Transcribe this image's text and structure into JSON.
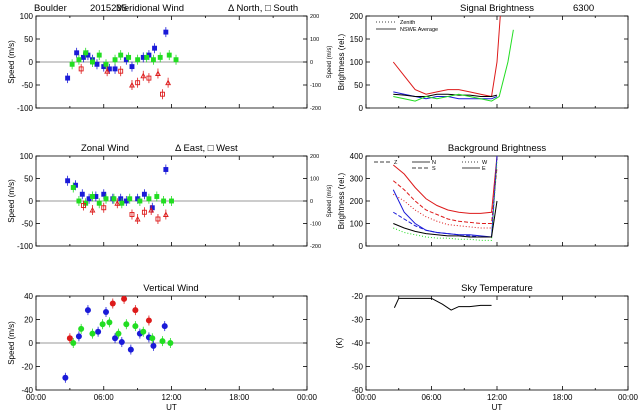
{
  "figure": {
    "site": "Boulder",
    "date_code": "2015235",
    "wavelength": "6300",
    "x_axis_label": "UT",
    "time_ticks": [
      "00:00",
      "06:00",
      "12:00",
      "18:00",
      "00:00"
    ]
  },
  "colors": {
    "red": "#dd1a1a",
    "green": "#22dd22",
    "blue": "#1a1ad8",
    "black": "#000000"
  },
  "chart_data": [
    {
      "id": "meridional_wind",
      "type": "scatter",
      "title": "Meridional Wind",
      "legend_text": "Δ North, □ South",
      "ylabel": "Speed (m/s)",
      "ylabel_right": "Speed (m/s)",
      "xlim": [
        0,
        24
      ],
      "ylim": [
        -100,
        100
      ],
      "yticks": [
        "100",
        "50",
        "0",
        "-50",
        "-100"
      ],
      "yticks_right": [
        "200",
        "100",
        "0",
        "-100",
        "-200"
      ],
      "series": [
        {
          "color": "blue",
          "x": [
            2.8,
            3.6,
            4.2,
            4.6,
            5.0,
            5.4,
            6.0,
            6.5,
            7.0,
            8.0,
            8.5,
            9.5,
            10.0,
            10.5,
            11.5
          ],
          "y": [
            -35,
            20,
            10,
            15,
            5,
            -5,
            -10,
            -15,
            -15,
            5,
            -10,
            10,
            15,
            30,
            65
          ]
        },
        {
          "color": "green",
          "x": [
            3.2,
            3.8,
            4.4,
            5.0,
            5.6,
            6.2,
            7.0,
            7.5,
            8.2,
            9.0,
            9.8,
            10.4,
            11.0,
            11.8,
            12.4
          ],
          "y": [
            -5,
            5,
            20,
            0,
            15,
            -5,
            5,
            15,
            10,
            5,
            10,
            5,
            10,
            15,
            5
          ]
        },
        {
          "color": "red",
          "x": [
            4.0,
            6.3,
            7.5,
            8.5,
            9.0,
            9.5,
            10.0,
            10.8,
            11.2,
            11.7
          ],
          "y": [
            -15,
            -20,
            -20,
            -50,
            -45,
            -30,
            -35,
            -25,
            -70,
            -45
          ]
        }
      ]
    },
    {
      "id": "zonal_wind",
      "type": "scatter",
      "title": "Zonal Wind",
      "legend_text": "Δ East, □ West",
      "ylabel": "Speed (m/s)",
      "ylabel_right": "Speed (m/s)",
      "xlim": [
        0,
        24
      ],
      "ylim": [
        -100,
        100
      ],
      "yticks": [
        "100",
        "50",
        "0",
        "-50",
        "-100"
      ],
      "yticks_right": [
        "200",
        "100",
        "0",
        "-100",
        "-200"
      ],
      "series": [
        {
          "color": "blue",
          "x": [
            2.8,
            3.5,
            4.1,
            4.7,
            5.3,
            6.0,
            6.8,
            7.5,
            8.0,
            9.0,
            9.6,
            10.3,
            11.5
          ],
          "y": [
            45,
            35,
            15,
            5,
            10,
            15,
            5,
            5,
            0,
            5,
            15,
            -15,
            70
          ]
        },
        {
          "color": "green",
          "x": [
            3.3,
            3.8,
            4.4,
            5.0,
            5.6,
            6.2,
            6.9,
            7.6,
            8.3,
            9.2,
            10.0,
            10.7,
            11.3,
            12.0
          ],
          "y": [
            30,
            0,
            -5,
            10,
            -5,
            5,
            5,
            -5,
            5,
            0,
            5,
            10,
            0,
            0
          ]
        },
        {
          "color": "red",
          "x": [
            4.2,
            5.0,
            6.0,
            7.2,
            8.5,
            9.0,
            9.6,
            10.2,
            10.8,
            11.5
          ],
          "y": [
            -10,
            -20,
            -15,
            -5,
            -30,
            -40,
            -25,
            -20,
            -40,
            -30
          ]
        }
      ]
    },
    {
      "id": "vertical_wind",
      "type": "scatter",
      "title": "Vertical Wind",
      "ylabel": "Speed (m/s)",
      "xlim": [
        0,
        24
      ],
      "ylim": [
        -50,
        50
      ],
      "yticks": [
        "40",
        "20",
        "0",
        "-20",
        "-40"
      ],
      "series": [
        {
          "color": "blue",
          "x": [
            2.6,
            3.8,
            4.6,
            5.5,
            6.2,
            7.0,
            7.6,
            8.4,
            9.2,
            10.0,
            10.4,
            11.4
          ],
          "y": [
            -37,
            7,
            35,
            12,
            33,
            5,
            1,
            -7,
            10,
            6,
            -3,
            18
          ]
        },
        {
          "color": "green",
          "x": [
            3.3,
            4.0,
            5.0,
            5.9,
            6.5,
            7.3,
            8.0,
            8.8,
            9.5,
            10.3,
            11.2,
            11.9
          ],
          "y": [
            0,
            15,
            10,
            20,
            22,
            10,
            20,
            18,
            12,
            5,
            2,
            0
          ]
        },
        {
          "color": "red",
          "x": [
            3.0,
            6.8,
            7.8,
            8.8,
            10.0
          ],
          "y": [
            5,
            42,
            47,
            35,
            24
          ]
        }
      ]
    },
    {
      "id": "signal_brightness",
      "type": "line",
      "title": "Signal Brightness",
      "ylabel": "Brightness (rel.)",
      "xlim": [
        0,
        24
      ],
      "ylim": [
        0,
        200
      ],
      "yticks": [
        "200",
        "150",
        "100",
        "50",
        "0"
      ],
      "legend": [
        "Zenith",
        "NSWE Average"
      ],
      "series": [
        {
          "color": "red",
          "x": [
            2.5,
            3.5,
            4.5,
            5.5,
            6.5,
            7.5,
            8.5,
            9.5,
            10.5,
            11.5,
            12.0,
            12.3
          ],
          "y": [
            100,
            70,
            40,
            30,
            35,
            40,
            40,
            35,
            30,
            25,
            100,
            200
          ]
        },
        {
          "color": "blue",
          "x": [
            2.5,
            3.5,
            4.5,
            5.5,
            6.5,
            7.5,
            8.5,
            9.5,
            10.5,
            11.5,
            12.0
          ],
          "y": [
            35,
            30,
            25,
            20,
            25,
            25,
            20,
            20,
            20,
            20,
            25
          ]
        },
        {
          "color": "black",
          "x": [
            2.5,
            3.5,
            4.5,
            5.5,
            6.5,
            7.5,
            8.5,
            9.5,
            10.5,
            11.5,
            12.0
          ],
          "y": [
            30,
            28,
            25,
            25,
            30,
            30,
            28,
            28,
            25,
            25,
            28
          ]
        },
        {
          "color": "green",
          "x": [
            2.5,
            3.5,
            4.5,
            5.5,
            6.5,
            7.5,
            8.5,
            9.5,
            10.5,
            11.5,
            12.2,
            13.0,
            13.5
          ],
          "y": [
            25,
            20,
            15,
            25,
            20,
            25,
            30,
            25,
            20,
            15,
            25,
            100,
            170
          ]
        }
      ]
    },
    {
      "id": "background_brightness",
      "type": "line",
      "title": "Background Brightness",
      "ylabel": "Brightness (rel.)",
      "xlim": [
        0,
        24
      ],
      "ylim": [
        0,
        400
      ],
      "yticks": [
        "400",
        "300",
        "200",
        "100",
        "0"
      ],
      "legend": [
        "Z",
        "N",
        "S",
        "W",
        "E"
      ],
      "series": [
        {
          "color": "red",
          "x": [
            2.5,
            3.5,
            4.5,
            5.5,
            6.5,
            7.5,
            8.5,
            9.5,
            10.5,
            11.5,
            12.0
          ],
          "y": [
            360,
            320,
            260,
            210,
            180,
            160,
            150,
            145,
            145,
            150,
            400
          ]
        },
        {
          "color": "red",
          "x": [
            2.5,
            3.5,
            4.5,
            5.5,
            6.5,
            7.5,
            8.5,
            9.5,
            10.5,
            11.5,
            12.0
          ],
          "y": [
            290,
            250,
            200,
            160,
            140,
            120,
            110,
            105,
            100,
            100,
            350
          ]
        },
        {
          "color": "red",
          "x": [
            2.5,
            3.5,
            4.5,
            5.5,
            6.5,
            7.5,
            8.5,
            9.5,
            10.5,
            11.5
          ],
          "y": [
            230,
            200,
            160,
            130,
            110,
            95,
            90,
            85,
            80,
            80
          ]
        },
        {
          "color": "blue",
          "x": [
            2.5,
            3.5,
            4.5,
            5.5,
            6.5,
            7.5,
            8.5,
            9.5,
            10.5,
            11.5,
            12.0
          ],
          "y": [
            250,
            150,
            100,
            70,
            60,
            55,
            50,
            50,
            45,
            40,
            400
          ]
        },
        {
          "color": "blue",
          "x": [
            2.5,
            3.5,
            4.5,
            5.5,
            6.5,
            7.5,
            8.5,
            9.5,
            10.5,
            11.5
          ],
          "y": [
            150,
            120,
            90,
            70,
            60,
            55,
            50,
            45,
            40,
            40
          ]
        },
        {
          "color": "green",
          "x": [
            2.5,
            3.5,
            4.5,
            5.5,
            6.5,
            7.5,
            8.5,
            9.5,
            10.5,
            11.5,
            12.0
          ],
          "y": [
            80,
            60,
            50,
            40,
            35,
            35,
            30,
            30,
            25,
            25,
            380
          ]
        },
        {
          "color": "black",
          "x": [
            2.5,
            3.5,
            4.5,
            5.5,
            6.5,
            7.5,
            8.5,
            9.5,
            10.5,
            11.5,
            12.0
          ],
          "y": [
            100,
            80,
            65,
            55,
            50,
            45,
            45,
            40,
            40,
            40,
            200
          ]
        }
      ]
    },
    {
      "id": "sky_temperature",
      "type": "line",
      "title": "Sky Temperature",
      "ylabel": "(K)",
      "xlim": [
        0,
        24
      ],
      "ylim": [
        -60,
        -20
      ],
      "yticks": [
        "-20",
        "-30",
        "-40",
        "-50",
        "-60"
      ],
      "series": [
        {
          "color": "black",
          "x": [
            2.6,
            3.0,
            4.0,
            5.0,
            6.0,
            7.0,
            7.8,
            8.5,
            9.5,
            10.5,
            11.5
          ],
          "y": [
            -25,
            -21,
            -21,
            -21,
            -21,
            -23.5,
            -26,
            -24.5,
            -24.5,
            -24,
            -24
          ]
        }
      ]
    }
  ]
}
